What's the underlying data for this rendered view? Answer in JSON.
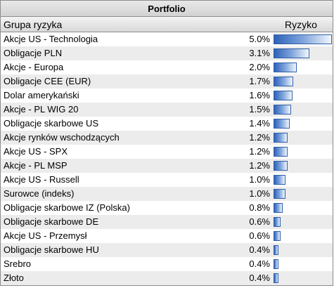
{
  "title": "Portfolio",
  "headers": {
    "name": "Grupa ryzyka",
    "risk": "Ryzyko"
  },
  "colors": {
    "bar_dark": "#2e62b8",
    "bar_light": "#f2f6fc",
    "row_alt": "#ececec"
  },
  "rows": [
    {
      "name": "Akcje US - Technologia",
      "value": "5.0%",
      "risk_fraction": 1.0
    },
    {
      "name": "Obligacje PLN",
      "value": "3.1%",
      "risk_fraction": 0.62
    },
    {
      "name": "Akcje - Europa",
      "value": "2.0%",
      "risk_fraction": 0.4
    },
    {
      "name": "Obligacje CEE (EUR)",
      "value": "1.7%",
      "risk_fraction": 0.34
    },
    {
      "name": "Dolar amerykański",
      "value": "1.6%",
      "risk_fraction": 0.32
    },
    {
      "name": "Akcje - PL WIG 20",
      "value": "1.5%",
      "risk_fraction": 0.3
    },
    {
      "name": "Obligacje skarbowe US",
      "value": "1.4%",
      "risk_fraction": 0.28
    },
    {
      "name": "Akcje rynków wschodzących",
      "value": "1.2%",
      "risk_fraction": 0.24
    },
    {
      "name": "Akcje US - SPX",
      "value": "1.2%",
      "risk_fraction": 0.24
    },
    {
      "name": "Akcje - PL MSP",
      "value": "1.2%",
      "risk_fraction": 0.24
    },
    {
      "name": "Akcje US - Russell",
      "value": "1.0%",
      "risk_fraction": 0.2
    },
    {
      "name": "Surowce (indeks)",
      "value": "1.0%",
      "risk_fraction": 0.2
    },
    {
      "name": "Obligacje skarbowe IZ (Polska)",
      "value": "0.8%",
      "risk_fraction": 0.16
    },
    {
      "name": "Obligacje skarbowe DE",
      "value": "0.6%",
      "risk_fraction": 0.12
    },
    {
      "name": "Akcje US - Przemysł",
      "value": "0.6%",
      "risk_fraction": 0.12
    },
    {
      "name": "Obligacje skarbowe HU",
      "value": "0.4%",
      "risk_fraction": 0.08
    },
    {
      "name": "Srebro",
      "value": "0.4%",
      "risk_fraction": 0.08
    },
    {
      "name": "Złoto",
      "value": "0.4%",
      "risk_fraction": 0.08
    }
  ]
}
